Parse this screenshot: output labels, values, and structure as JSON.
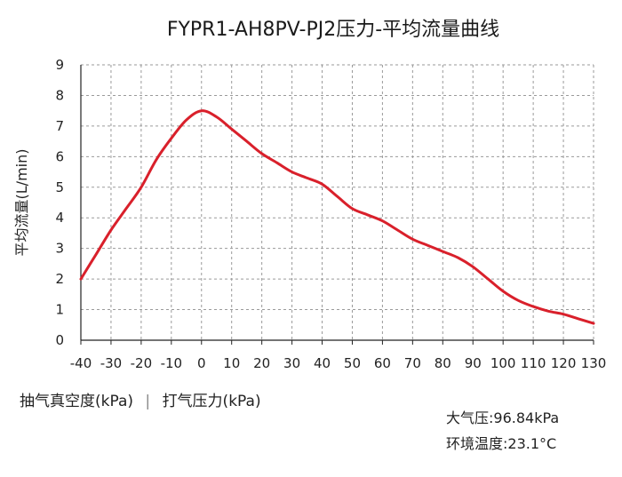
{
  "chart_data": {
    "type": "line",
    "title": "FYPR1-AH8PV-PJ2压力-平均流量曲线",
    "ylabel": "平均流量(L/min)",
    "xlabel": "",
    "x_ticks": [
      -40,
      -30,
      -20,
      -10,
      0,
      10,
      20,
      30,
      40,
      50,
      60,
      70,
      80,
      90,
      100,
      110,
      120,
      130
    ],
    "y_ticks": [
      0,
      1,
      2,
      3,
      4,
      5,
      6,
      7,
      8,
      9
    ],
    "xlim": [
      -40,
      130
    ],
    "ylim": [
      0,
      9
    ],
    "grid": true,
    "series": [
      {
        "color": "#d9202b",
        "x": [
          -40,
          -35,
          -30,
          -25,
          -20,
          -15,
          -10,
          -5,
          0,
          5,
          10,
          15,
          20,
          25,
          30,
          35,
          40,
          45,
          50,
          55,
          60,
          65,
          70,
          75,
          80,
          85,
          90,
          95,
          100,
          105,
          110,
          115,
          120,
          125,
          130
        ],
        "y": [
          2.0,
          2.8,
          3.6,
          4.3,
          5.0,
          5.9,
          6.6,
          7.2,
          7.5,
          7.3,
          6.9,
          6.5,
          6.1,
          5.8,
          5.5,
          5.3,
          5.1,
          4.7,
          4.3,
          4.1,
          3.9,
          3.6,
          3.3,
          3.1,
          2.9,
          2.7,
          2.4,
          2.0,
          1.6,
          1.3,
          1.1,
          0.95,
          0.85,
          0.7,
          0.55
        ]
      }
    ]
  },
  "bottom_labels": {
    "vacuum": "抽气真空度(kPa)",
    "divider": "|",
    "pressure": "打气压力(kPa)"
  },
  "conditions": {
    "atmosphere": "大气压:96.84kPa",
    "temperature": "环境温度:23.1°C"
  }
}
